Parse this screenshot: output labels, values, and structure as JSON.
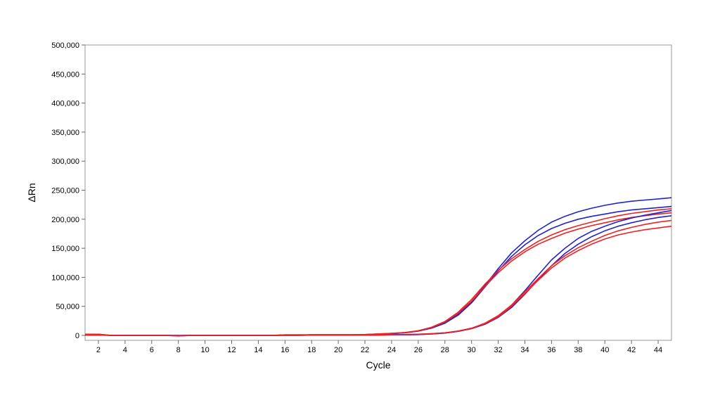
{
  "chart_data": {
    "type": "line",
    "title": "",
    "xlabel": "Cycle",
    "ylabel": "ΔRn",
    "xlim": [
      1,
      45
    ],
    "ylim": [
      0,
      500000
    ],
    "x_ticks": [
      2,
      4,
      6,
      8,
      10,
      12,
      14,
      16,
      18,
      20,
      22,
      24,
      26,
      28,
      30,
      32,
      34,
      36,
      38,
      40,
      42,
      44
    ],
    "y_ticks": [
      0,
      50000,
      100000,
      150000,
      200000,
      250000,
      300000,
      350000,
      400000,
      450000,
      500000
    ],
    "y_tick_labels": [
      "0",
      "50,000",
      "100,000",
      "150,000",
      "200,000",
      "250,000",
      "300,000",
      "350,000",
      "400,000",
      "450,000",
      "500,000"
    ],
    "grid": false,
    "legend": "none",
    "x": [
      1,
      2,
      3,
      4,
      5,
      6,
      7,
      8,
      9,
      10,
      11,
      12,
      13,
      14,
      15,
      16,
      17,
      18,
      19,
      20,
      21,
      22,
      23,
      24,
      25,
      26,
      27,
      28,
      29,
      30,
      31,
      32,
      33,
      34,
      35,
      36,
      37,
      38,
      39,
      40,
      41,
      42,
      43,
      44,
      45
    ],
    "series": [
      {
        "color": "#2222cc",
        "values": [
          1000,
          1000,
          0,
          0,
          0,
          0,
          0,
          -500,
          0,
          0,
          0,
          0,
          0,
          0,
          0,
          500,
          500,
          1000,
          1000,
          1000,
          1000,
          1500,
          2000,
          3000,
          4500,
          7500,
          13000,
          22000,
          37000,
          58000,
          86000,
          115000,
          142000,
          163000,
          181000,
          195000,
          205000,
          213000,
          219000,
          224000,
          228000,
          231000,
          233000,
          235000,
          237000
        ]
      },
      {
        "color": "#2222cc",
        "values": [
          1000,
          1000,
          0,
          0,
          0,
          0,
          0,
          -500,
          0,
          0,
          0,
          0,
          0,
          0,
          0,
          500,
          500,
          1000,
          1000,
          1000,
          1000,
          1500,
          2000,
          3000,
          4500,
          7500,
          12500,
          21000,
          35000,
          56000,
          83000,
          111000,
          136000,
          156000,
          172000,
          184000,
          193000,
          200000,
          205000,
          209000,
          213000,
          216000,
          218000,
          220000,
          222000
        ]
      },
      {
        "color": "#ee2222",
        "values": [
          2000,
          2000,
          0,
          0,
          0,
          0,
          0,
          -1000,
          0,
          0,
          0,
          0,
          0,
          0,
          0,
          1000,
          1000,
          1000,
          1000,
          1000,
          1000,
          1500,
          2500,
          3500,
          5000,
          8000,
          14000,
          24000,
          40000,
          62000,
          88000,
          112000,
          132000,
          148000,
          162000,
          173000,
          182000,
          189000,
          195000,
          201000,
          206000,
          210000,
          213000,
          216000,
          218000
        ]
      },
      {
        "color": "#ee2222",
        "values": [
          2000,
          2000,
          0,
          0,
          0,
          0,
          0,
          -1000,
          0,
          0,
          0,
          0,
          0,
          0,
          0,
          1000,
          1000,
          1000,
          1000,
          1000,
          1000,
          1500,
          2500,
          3500,
          5000,
          8000,
          13500,
          23000,
          38000,
          59000,
          84000,
          108000,
          128000,
          144000,
          157000,
          167000,
          176000,
          183000,
          189000,
          194000,
          199000,
          203000,
          206000,
          209000,
          211000
        ]
      },
      {
        "color": "#2222cc",
        "values": [
          500,
          500,
          0,
          0,
          0,
          0,
          0,
          0,
          0,
          0,
          0,
          0,
          0,
          0,
          0,
          0,
          0,
          500,
          500,
          500,
          500,
          500,
          500,
          1000,
          1000,
          1500,
          2500,
          4000,
          7000,
          12000,
          20000,
          33000,
          52000,
          77000,
          104000,
          130000,
          150000,
          167000,
          179000,
          188000,
          196000,
          202000,
          207000,
          211000,
          215000
        ]
      },
      {
        "color": "#2222cc",
        "values": [
          500,
          500,
          0,
          0,
          0,
          0,
          0,
          0,
          0,
          0,
          0,
          0,
          0,
          0,
          0,
          0,
          0,
          500,
          500,
          500,
          500,
          500,
          500,
          1000,
          1000,
          1500,
          2500,
          4000,
          7000,
          11500,
          19000,
          31000,
          48000,
          71000,
          96000,
          120000,
          141000,
          157000,
          170000,
          180000,
          188000,
          194000,
          199000,
          203000,
          206000
        ]
      },
      {
        "color": "#ee2222",
        "values": [
          1000,
          1000,
          0,
          0,
          0,
          0,
          0,
          -500,
          0,
          0,
          0,
          0,
          0,
          0,
          0,
          500,
          500,
          1000,
          1000,
          1000,
          1000,
          1000,
          1000,
          1500,
          1500,
          2000,
          3000,
          4500,
          7500,
          12500,
          21000,
          34000,
          52000,
          75000,
          98000,
          120000,
          137000,
          151000,
          162000,
          172000,
          180000,
          186000,
          191000,
          195000,
          198000
        ]
      },
      {
        "color": "#ee2222",
        "values": [
          1000,
          1000,
          0,
          0,
          0,
          0,
          0,
          -500,
          0,
          0,
          0,
          0,
          0,
          0,
          0,
          500,
          500,
          1000,
          1000,
          1000,
          1000,
          1000,
          1000,
          1500,
          1500,
          2000,
          3000,
          4500,
          7500,
          12000,
          20000,
          32000,
          50000,
          72000,
          95000,
          116000,
          133000,
          146000,
          157000,
          166000,
          173000,
          178000,
          182000,
          185000,
          188000
        ]
      }
    ]
  }
}
